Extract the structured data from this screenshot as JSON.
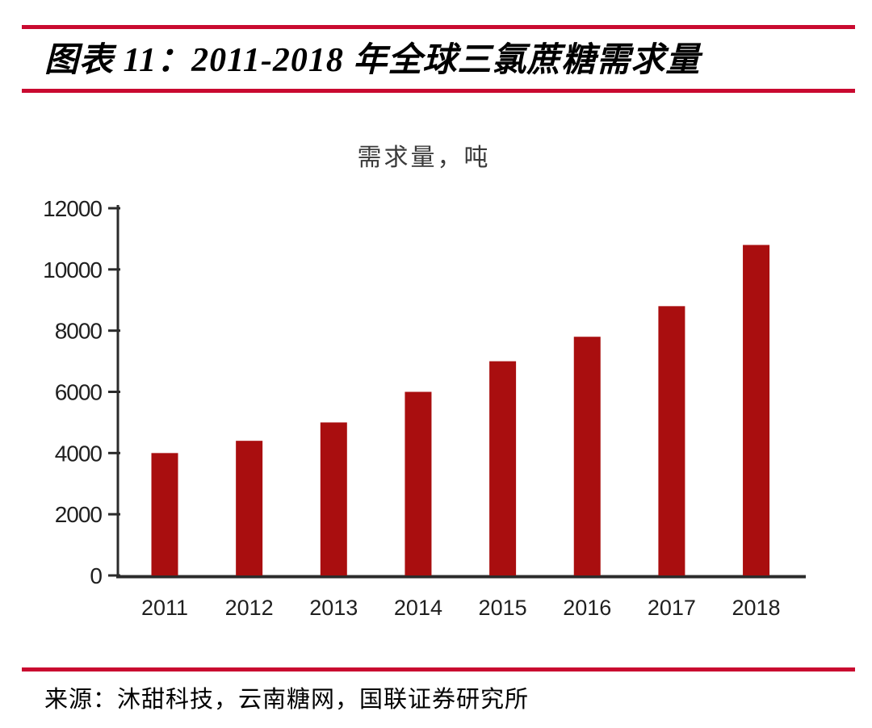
{
  "header": {
    "title": "图表 11：2011-2018 年全球三氯蔗糖需求量"
  },
  "footer": {
    "source": "来源：沐甜科技，云南糖网，国联证券研究所"
  },
  "colors": {
    "accent_rule": "#C90A30",
    "bar": "#A90E0F",
    "axis": "#2b2b2b",
    "tick_text": "#1f1f1f"
  },
  "chart_data": {
    "type": "bar",
    "title": "需求量，吨",
    "categories": [
      "2011",
      "2012",
      "2013",
      "2014",
      "2015",
      "2016",
      "2017",
      "2018"
    ],
    "values": [
      4000,
      4400,
      5000,
      6000,
      7000,
      7800,
      8800,
      10800
    ],
    "xlabel": "",
    "ylabel": "",
    "ylim": [
      0,
      12000
    ],
    "yticks": [
      0,
      2000,
      4000,
      6000,
      8000,
      10000,
      12000
    ],
    "grid": false,
    "legend": "none",
    "bar_color": "#A90E0F"
  }
}
